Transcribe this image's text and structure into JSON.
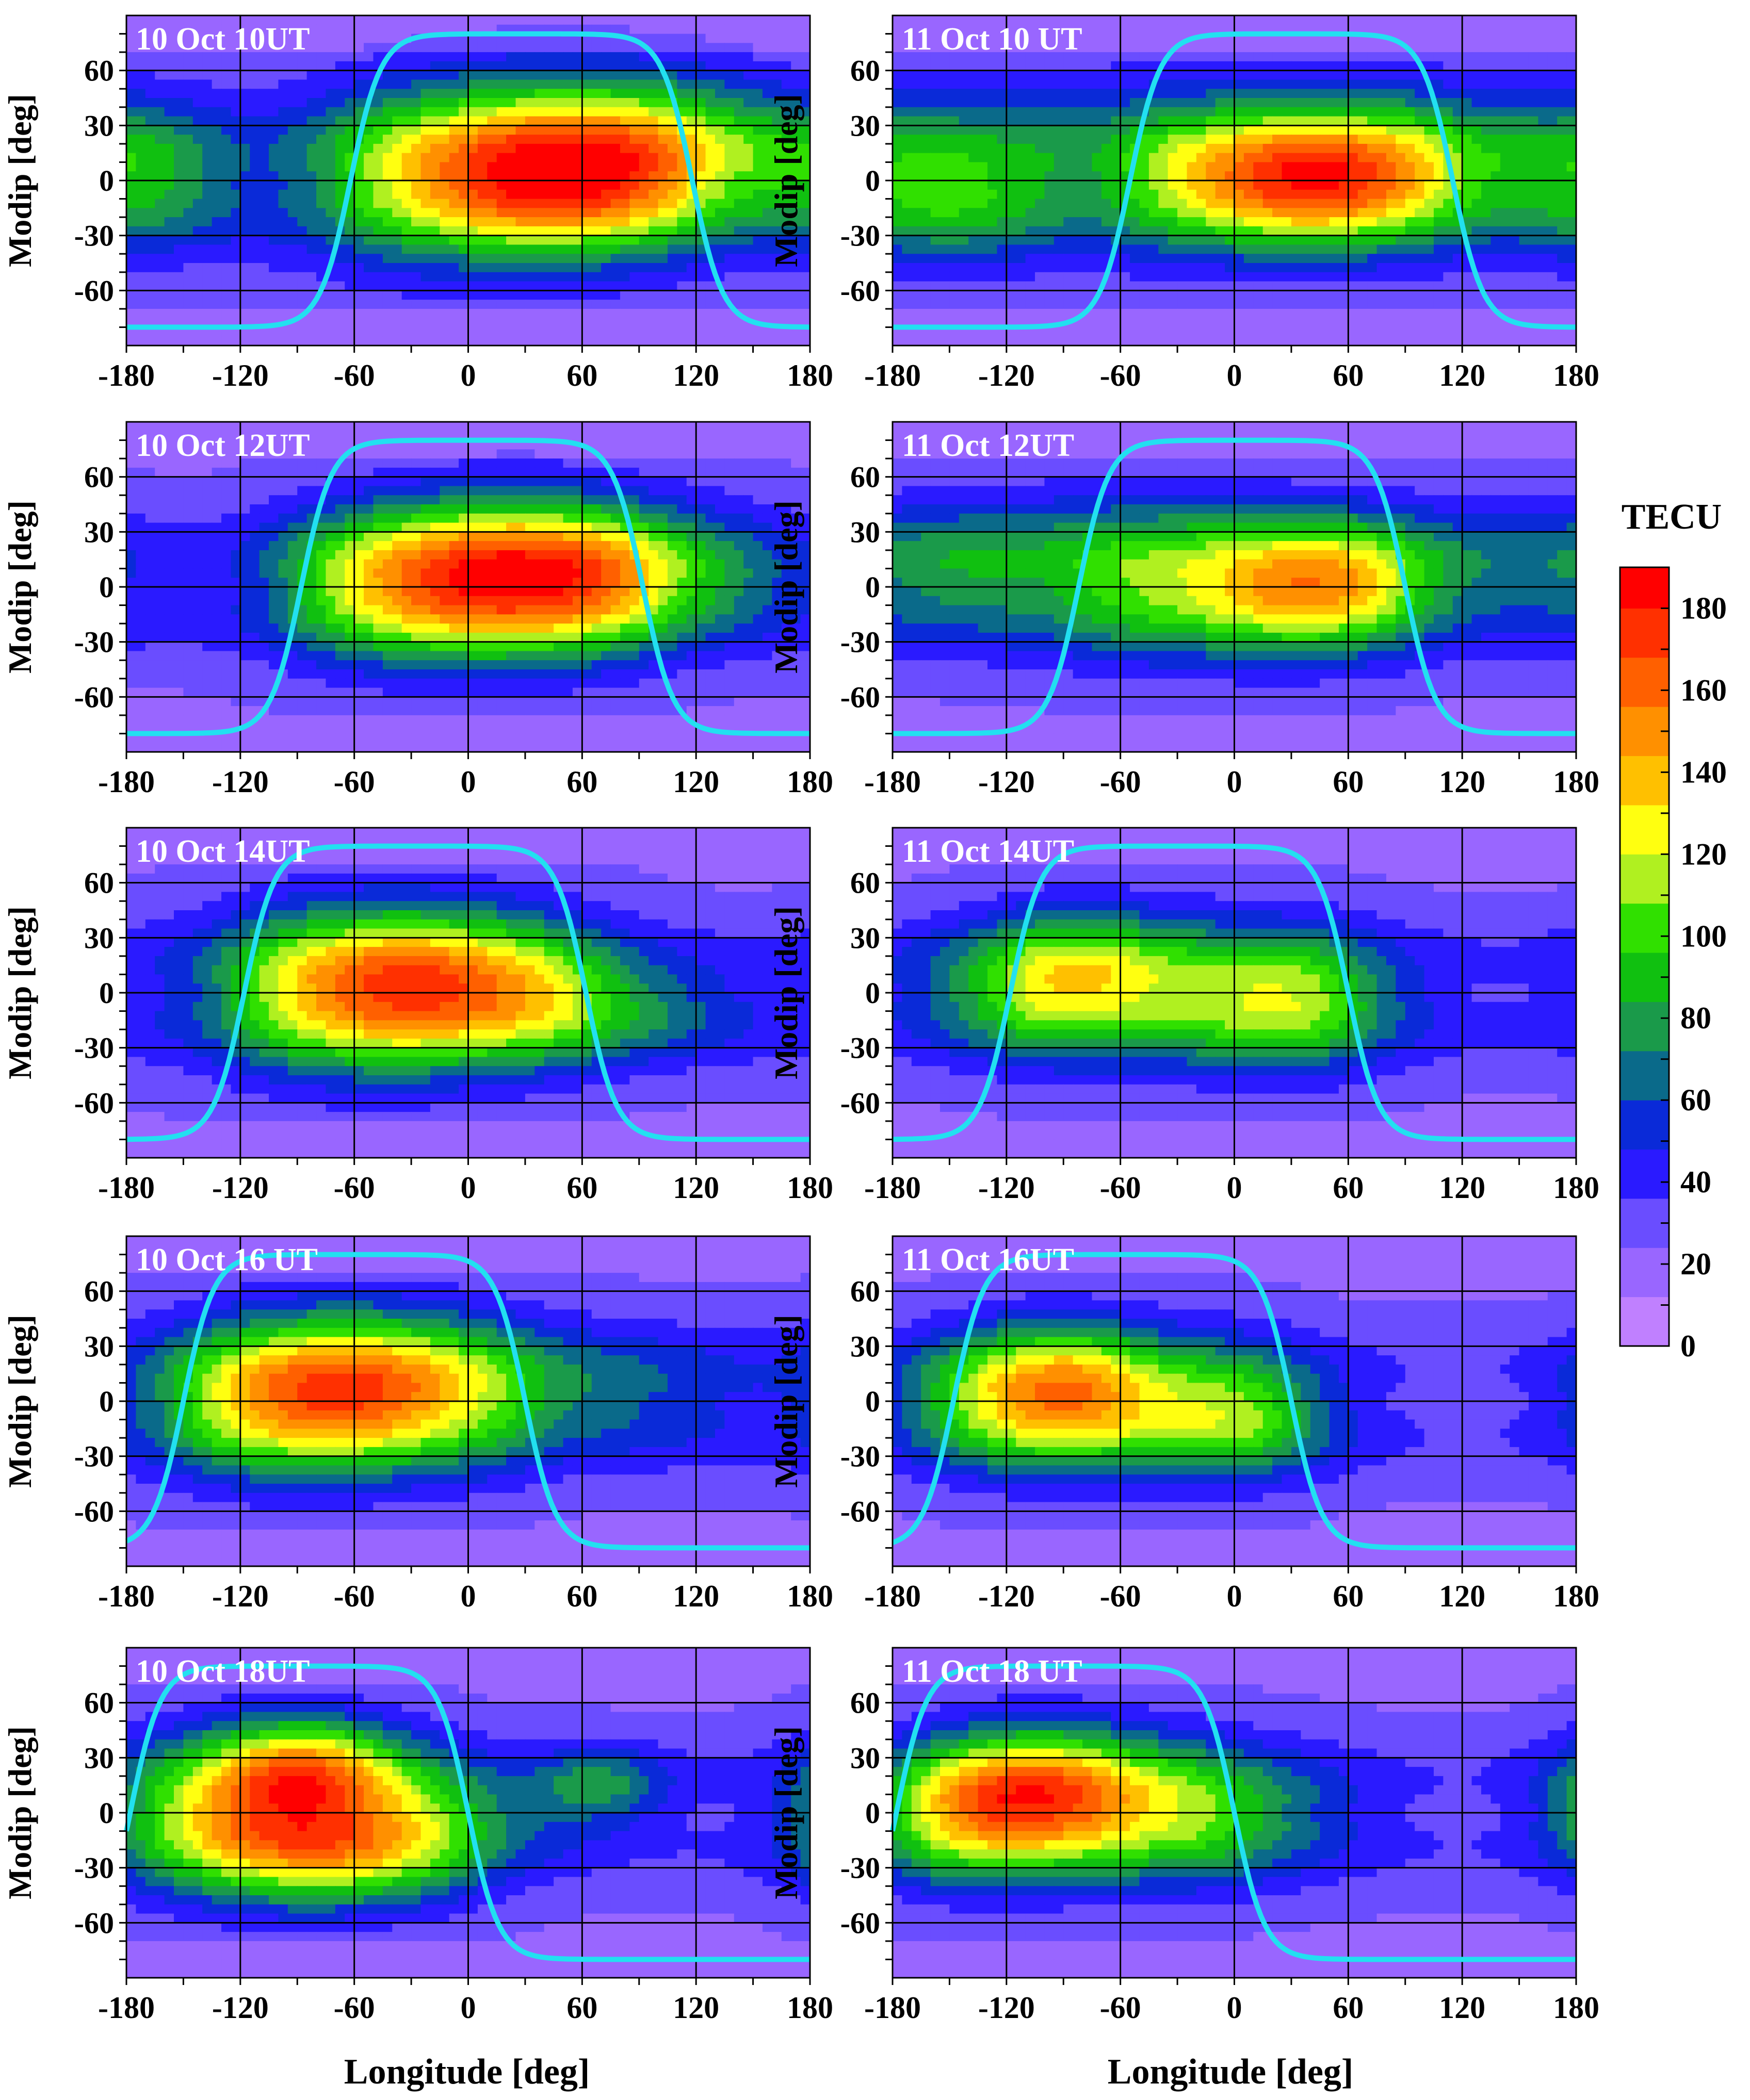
{
  "figure": {
    "colorbar_title": "TECU",
    "x_axis_title": "Longitude [deg]",
    "y_axis_title": "Modip [deg]"
  },
  "colors": {
    "terminator": "#22e0f0",
    "grid": "#000000",
    "panel_label": "#ffffff",
    "scale": [
      "#c080ff",
      "#9966ff",
      "#6a4dff",
      "#2a1aff",
      "#0a2ad8",
      "#0a6a8a",
      "#1a9a4a",
      "#10c010",
      "#30e000",
      "#b0f020",
      "#ffff10",
      "#ffc000",
      "#ff9000",
      "#ff6000",
      "#ff3000",
      "#ff0000"
    ]
  },
  "chart_data": {
    "type": "heatmap",
    "units": "TECU",
    "colorbar": {
      "title": "TECU",
      "range": [
        0,
        190
      ],
      "ticks": [
        "0",
        "20",
        "40",
        "60",
        "80",
        "100",
        "120",
        "140",
        "160",
        "180"
      ],
      "levels": [
        0,
        12,
        24,
        36,
        48,
        60,
        72,
        84,
        96,
        108,
        120,
        132,
        144,
        156,
        168,
        180,
        192
      ]
    },
    "x": {
      "label": "Longitude [deg]",
      "range": [
        -180,
        180
      ],
      "ticks": [
        "-180",
        "-120",
        "-60",
        "0",
        "60",
        "120",
        "180"
      ]
    },
    "y": {
      "label": "Modip [deg]",
      "range": [
        -90,
        90
      ],
      "ticks": [
        "60",
        "30",
        "0",
        "-30",
        "-60"
      ]
    },
    "grid": true,
    "panels": [
      {
        "title": "10 Oct 10UT",
        "terminator_edges": [
          -62,
          118
        ],
        "blobs": [
          [
            70,
            15,
            75,
            30,
            90
          ],
          [
            0,
            0,
            90,
            40,
            35
          ],
          [
            -170,
            0,
            30,
            25,
            35
          ],
          [
            40,
            -10,
            40,
            20,
            25
          ]
        ]
      },
      {
        "title": "11 Oct 10 UT",
        "terminator_edges": [
          -55,
          115
        ],
        "blobs": [
          [
            40,
            0,
            45,
            22,
            70
          ],
          [
            -60,
            10,
            100,
            35,
            35
          ],
          [
            110,
            10,
            80,
            30,
            40
          ],
          [
            -150,
            -10,
            40,
            25,
            35
          ]
        ]
      },
      {
        "title": "10 Oct 12UT",
        "terminator_edges": [
          -88,
          92
        ],
        "blobs": [
          [
            40,
            10,
            70,
            28,
            80
          ],
          [
            -10,
            0,
            60,
            30,
            50
          ],
          [
            110,
            0,
            50,
            20,
            20
          ]
        ]
      },
      {
        "title": "11 Oct 12UT",
        "terminator_edges": [
          -82,
          90
        ],
        "blobs": [
          [
            40,
            0,
            40,
            22,
            65
          ],
          [
            -60,
            10,
            70,
            30,
            40
          ],
          [
            -150,
            10,
            40,
            25,
            30
          ],
          [
            110,
            10,
            50,
            25,
            30
          ]
        ]
      },
      {
        "title": "10 Oct 14UT",
        "terminator_edges": [
          -118,
          62
        ],
        "blobs": [
          [
            -20,
            5,
            60,
            28,
            70
          ],
          [
            -60,
            0,
            60,
            35,
            40
          ],
          [
            80,
            -10,
            50,
            20,
            35
          ]
        ]
      },
      {
        "title": "11 Oct 14UT",
        "terminator_edges": [
          -118,
          60
        ],
        "blobs": [
          [
            -80,
            10,
            40,
            25,
            55
          ],
          [
            30,
            -5,
            45,
            25,
            55
          ],
          [
            -130,
            0,
            40,
            25,
            30
          ]
        ]
      },
      {
        "title": "10 Oct 16 UT",
        "terminator_edges": [
          -150,
          30
        ],
        "blobs": [
          [
            -50,
            10,
            55,
            28,
            75
          ],
          [
            -100,
            0,
            50,
            30,
            45
          ],
          [
            80,
            5,
            50,
            25,
            30
          ]
        ]
      },
      {
        "title": "11 Oct 16UT",
        "terminator_edges": [
          -148,
          30
        ],
        "blobs": [
          [
            -90,
            5,
            35,
            25,
            85
          ],
          [
            0,
            -10,
            40,
            22,
            50
          ],
          [
            -150,
            0,
            30,
            25,
            30
          ]
        ]
      },
      {
        "title": "10 Oct 18UT",
        "terminator_edges": [
          -178,
          0
        ],
        "blobs": [
          [
            -85,
            25,
            35,
            20,
            85
          ],
          [
            -70,
            -20,
            50,
            22,
            80
          ],
          [
            -130,
            0,
            40,
            30,
            40
          ],
          [
            70,
            15,
            25,
            15,
            40
          ],
          [
            10,
            0,
            45,
            20,
            20
          ]
        ]
      },
      {
        "title": "11 Oct 18 UT",
        "terminator_edges": [
          -178,
          0
        ],
        "blobs": [
          [
            -100,
            10,
            40,
            25,
            100
          ],
          [
            -150,
            0,
            30,
            25,
            40
          ],
          [
            0,
            0,
            45,
            25,
            45
          ]
        ]
      }
    ]
  }
}
